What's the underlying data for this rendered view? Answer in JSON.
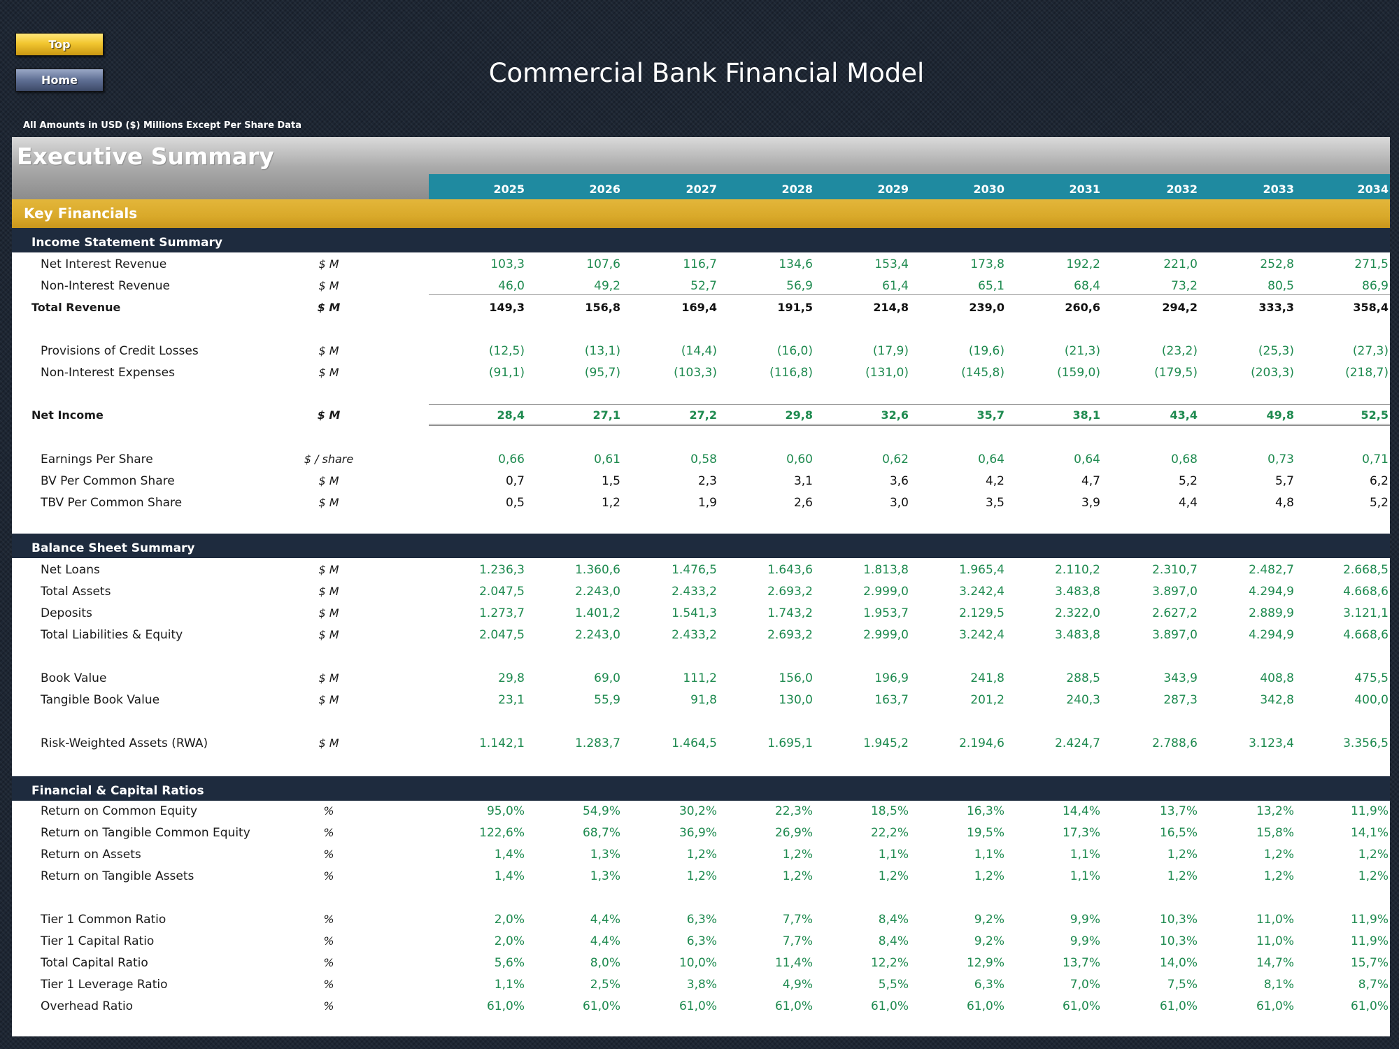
{
  "nav": {
    "top_label": "Top",
    "home_label": "Home"
  },
  "header": {
    "title": "Commercial Bank Financial Model",
    "units_note": "All Amounts in  USD ($) Millions Except Per Share Data"
  },
  "sheet": {
    "title": "Executive Summary",
    "years": [
      "2025",
      "2026",
      "2027",
      "2028",
      "2029",
      "2030",
      "2031",
      "2032",
      "2033",
      "2034"
    ],
    "key_financials_label": "Key Financials",
    "sections": [
      {
        "label": "Income Statement Summary",
        "rows": [
          {
            "label": "Net Interest Revenue",
            "unit": "$ M",
            "color": "green",
            "values": [
              "103,3",
              "107,6",
              "116,7",
              "134,6",
              "153,4",
              "173,8",
              "192,2",
              "221,0",
              "252,8",
              "271,5"
            ]
          },
          {
            "label": "Non-Interest Revenue",
            "unit": "$ M",
            "color": "green",
            "values": [
              "46,0",
              "49,2",
              "52,7",
              "56,9",
              "61,4",
              "65,1",
              "68,4",
              "73,2",
              "80,5",
              "86,9"
            ]
          },
          {
            "label": "Total Revenue",
            "unit": "$ M",
            "color": "black",
            "bold": true,
            "values": [
              "149,3",
              "156,8",
              "169,4",
              "191,5",
              "214,8",
              "239,0",
              "260,6",
              "294,2",
              "333,3",
              "358,4"
            ]
          },
          {
            "label": "Provisions of Credit Losses",
            "unit": "$ M",
            "color": "green",
            "values": [
              "(12,5)",
              "(13,1)",
              "(14,4)",
              "(16,0)",
              "(17,9)",
              "(19,6)",
              "(21,3)",
              "(23,2)",
              "(25,3)",
              "(27,3)"
            ]
          },
          {
            "label": "Non-Interest Expenses",
            "unit": "$ M",
            "color": "green",
            "values": [
              "(91,1)",
              "(95,7)",
              "(103,3)",
              "(116,8)",
              "(131,0)",
              "(145,8)",
              "(159,0)",
              "(179,5)",
              "(203,3)",
              "(218,7)"
            ]
          },
          {
            "label": "Net Income",
            "unit": "$ M",
            "color": "green",
            "bold": true,
            "values": [
              "28,4",
              "27,1",
              "27,2",
              "29,8",
              "32,6",
              "35,7",
              "38,1",
              "43,4",
              "49,8",
              "52,5"
            ]
          },
          {
            "label": "Earnings Per Share",
            "unit": "$ / share",
            "color": "green",
            "values": [
              "0,66",
              "0,61",
              "0,58",
              "0,60",
              "0,62",
              "0,64",
              "0,64",
              "0,68",
              "0,73",
              "0,71"
            ]
          },
          {
            "label": "BV Per Common Share",
            "unit": "$ M",
            "color": "black",
            "values": [
              "0,7",
              "1,5",
              "2,3",
              "3,1",
              "3,6",
              "4,2",
              "4,7",
              "5,2",
              "5,7",
              "6,2"
            ]
          },
          {
            "label": "TBV Per Common Share",
            "unit": "$ M",
            "color": "black",
            "values": [
              "0,5",
              "1,2",
              "1,9",
              "2,6",
              "3,0",
              "3,5",
              "3,9",
              "4,4",
              "4,8",
              "5,2"
            ]
          }
        ]
      },
      {
        "label": "Balance Sheet Summary",
        "rows": [
          {
            "label": "Net Loans",
            "unit": "$ M",
            "color": "green",
            "values": [
              "1.236,3",
              "1.360,6",
              "1.476,5",
              "1.643,6",
              "1.813,8",
              "1.965,4",
              "2.110,2",
              "2.310,7",
              "2.482,7",
              "2.668,5"
            ]
          },
          {
            "label": "Total Assets",
            "unit": "$ M",
            "color": "green",
            "values": [
              "2.047,5",
              "2.243,0",
              "2.433,2",
              "2.693,2",
              "2.999,0",
              "3.242,4",
              "3.483,8",
              "3.897,0",
              "4.294,9",
              "4.668,6"
            ]
          },
          {
            "label": "Deposits",
            "unit": "$ M",
            "color": "green",
            "values": [
              "1.273,7",
              "1.401,2",
              "1.541,3",
              "1.743,2",
              "1.953,7",
              "2.129,5",
              "2.322,0",
              "2.627,2",
              "2.889,9",
              "3.121,1"
            ]
          },
          {
            "label": "Total Liabilities & Equity",
            "unit": "$ M",
            "color": "green",
            "values": [
              "2.047,5",
              "2.243,0",
              "2.433,2",
              "2.693,2",
              "2.999,0",
              "3.242,4",
              "3.483,8",
              "3.897,0",
              "4.294,9",
              "4.668,6"
            ]
          },
          {
            "label": "Book Value",
            "unit": "$ M",
            "color": "green",
            "values": [
              "29,8",
              "69,0",
              "111,2",
              "156,0",
              "196,9",
              "241,8",
              "288,5",
              "343,9",
              "408,8",
              "475,5"
            ]
          },
          {
            "label": "Tangible Book Value",
            "unit": "$ M",
            "color": "green",
            "values": [
              "23,1",
              "55,9",
              "91,8",
              "130,0",
              "163,7",
              "201,2",
              "240,3",
              "287,3",
              "342,8",
              "400,0"
            ]
          },
          {
            "label": "Risk-Weighted Assets (RWA)",
            "unit": "$ M",
            "color": "green",
            "values": [
              "1.142,1",
              "1.283,7",
              "1.464,5",
              "1.695,1",
              "1.945,2",
              "2.194,6",
              "2.424,7",
              "2.788,6",
              "3.123,4",
              "3.356,5"
            ]
          }
        ]
      },
      {
        "label": "Financial & Capital Ratios",
        "rows": [
          {
            "label": "Return on Common Equity",
            "unit": "%",
            "color": "green",
            "values": [
              "95,0%",
              "54,9%",
              "30,2%",
              "22,3%",
              "18,5%",
              "16,3%",
              "14,4%",
              "13,7%",
              "13,2%",
              "11,9%"
            ]
          },
          {
            "label": "Return on Tangible Common Equity",
            "unit": "%",
            "color": "green",
            "values": [
              "122,6%",
              "68,7%",
              "36,9%",
              "26,9%",
              "22,2%",
              "19,5%",
              "17,3%",
              "16,5%",
              "15,8%",
              "14,1%"
            ]
          },
          {
            "label": "Return on Assets",
            "unit": "%",
            "color": "green",
            "values": [
              "1,4%",
              "1,3%",
              "1,2%",
              "1,2%",
              "1,1%",
              "1,1%",
              "1,1%",
              "1,2%",
              "1,2%",
              "1,2%"
            ]
          },
          {
            "label": "Return on Tangible Assets",
            "unit": "%",
            "color": "green",
            "values": [
              "1,4%",
              "1,3%",
              "1,2%",
              "1,2%",
              "1,2%",
              "1,2%",
              "1,1%",
              "1,2%",
              "1,2%",
              "1,2%"
            ]
          },
          {
            "label": "Tier 1 Common Ratio",
            "unit": "%",
            "color": "green",
            "values": [
              "2,0%",
              "4,4%",
              "6,3%",
              "7,7%",
              "8,4%",
              "9,2%",
              "9,9%",
              "10,3%",
              "11,0%",
              "11,9%"
            ]
          },
          {
            "label": "Tier 1 Capital Ratio",
            "unit": "%",
            "color": "green",
            "values": [
              "2,0%",
              "4,4%",
              "6,3%",
              "7,7%",
              "8,4%",
              "9,2%",
              "9,9%",
              "10,3%",
              "11,0%",
              "11,9%"
            ]
          },
          {
            "label": "Total Capital Ratio",
            "unit": "%",
            "color": "green",
            "values": [
              "5,6%",
              "8,0%",
              "10,0%",
              "11,4%",
              "12,2%",
              "12,9%",
              "13,7%",
              "14,0%",
              "14,7%",
              "15,7%"
            ]
          },
          {
            "label": "Tier 1 Leverage Ratio",
            "unit": "%",
            "color": "green",
            "values": [
              "1,1%",
              "2,5%",
              "3,8%",
              "4,9%",
              "5,5%",
              "6,3%",
              "7,0%",
              "7,5%",
              "8,1%",
              "8,7%"
            ]
          },
          {
            "label": "Overhead Ratio",
            "unit": "%",
            "color": "green",
            "values": [
              "61,0%",
              "61,0%",
              "61,0%",
              "61,0%",
              "61,0%",
              "61,0%",
              "61,0%",
              "61,0%",
              "61,0%",
              "61,0%"
            ]
          }
        ]
      }
    ]
  },
  "colors": {
    "background": "#1d2633",
    "section_bar": "#1e2b3e",
    "year_band": "#1f8aa0",
    "key_financials_bar": "#d9a92a",
    "value_green": "#1e8a4f"
  }
}
